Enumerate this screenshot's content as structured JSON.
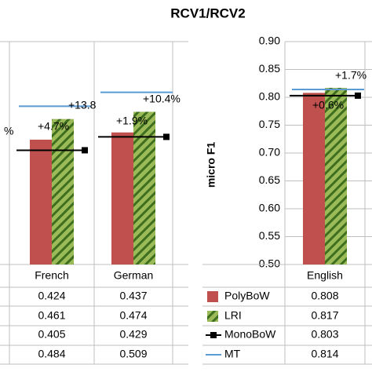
{
  "chart_data": [
    {
      "type": "bar",
      "categories": [
        "French",
        "German"
      ],
      "ylim": [
        0.2,
        0.6
      ],
      "series": [
        {
          "color": "#c0504d",
          "kind": "bar",
          "values": [
            0.424,
            0.437
          ]
        },
        {
          "color": "#9bbb59",
          "kind": "bar",
          "hatch": true,
          "values": [
            0.461,
            0.474
          ]
        },
        {
          "color": "#000000",
          "kind": "marker",
          "values": [
            0.405,
            0.429
          ]
        },
        {
          "color": "#5b9bd5",
          "kind": "line",
          "values": [
            0.484,
            0.509
          ]
        }
      ],
      "annotations": [
        "%",
        "+4.7%",
        "+13.8",
        "+1.9%",
        "+10.4%"
      ]
    },
    {
      "type": "bar",
      "title": "RCV1/RCV2",
      "ylabel": "micro F1",
      "categories": [
        "English"
      ],
      "ylim": [
        0.5,
        0.9
      ],
      "yticks": [
        {
          "value": 0.5,
          "label": "0.50"
        },
        {
          "value": 0.55,
          "label": "0.55"
        },
        {
          "value": 0.6,
          "label": "0.60"
        },
        {
          "value": 0.65,
          "label": "0.65"
        },
        {
          "value": 0.7,
          "label": "0.70"
        },
        {
          "value": 0.75,
          "label": "0.75"
        },
        {
          "value": 0.8,
          "label": "0.80"
        },
        {
          "value": 0.85,
          "label": "0.85"
        },
        {
          "value": 0.9,
          "label": "0.90"
        }
      ],
      "series": [
        {
          "name": "PolyBoW",
          "color": "#c0504d",
          "kind": "bar",
          "values": [
            0.808
          ]
        },
        {
          "name": "LRI",
          "color": "#9bbb59",
          "kind": "bar",
          "hatch": true,
          "values": [
            0.817
          ]
        },
        {
          "name": "MonoBoW",
          "color": "#000000",
          "kind": "marker",
          "values": [
            0.803
          ]
        },
        {
          "name": "MT",
          "color": "#5b9bd5",
          "kind": "line",
          "values": [
            0.814
          ]
        }
      ],
      "annotations": [
        "+0.6%",
        "+1.7%"
      ]
    }
  ]
}
